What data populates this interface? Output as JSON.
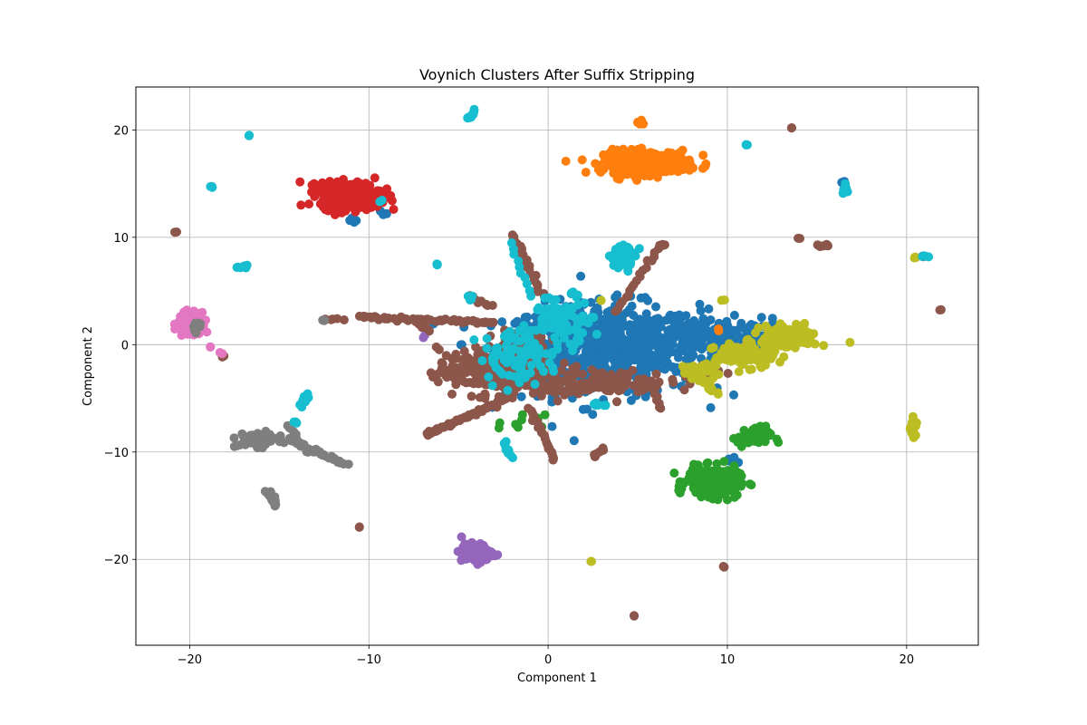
{
  "chart_data": {
    "type": "scatter",
    "title": "Voynich Clusters After Suffix Stripping",
    "xlabel": "Component 1",
    "ylabel": "Component 2",
    "xlim": [
      -23,
      24
    ],
    "ylim": [
      -28,
      24
    ],
    "xticks": [
      -20,
      -10,
      0,
      10,
      20
    ],
    "yticks": [
      -20,
      -10,
      0,
      10,
      20
    ],
    "grid": true,
    "legend": "none",
    "colors": [
      "#1f77b4",
      "#ff7f0e",
      "#2ca02c",
      "#d62728",
      "#9467bd",
      "#8c564b",
      "#e377c2",
      "#7f7f7f",
      "#bcbd22",
      "#17becf"
    ],
    "series": [
      {
        "color": "#1f77b4",
        "blobs": [
          {
            "cx": 3.0,
            "cy": -0.5,
            "rx": 4.5,
            "ry": 3.5,
            "n": 700
          },
          {
            "cx": 8.0,
            "cy": 0.8,
            "rx": 2.5,
            "ry": 1.8,
            "n": 120
          },
          {
            "cx": 11.0,
            "cy": 1.0,
            "rx": 1.8,
            "ry": 1.2,
            "n": 50
          },
          {
            "cx": 4.5,
            "cy": 16.3,
            "rx": 0.5,
            "ry": 0.3,
            "n": 12
          },
          {
            "cx": 16.5,
            "cy": 15.1,
            "rx": 0.15,
            "ry": 0.15,
            "n": 4
          },
          {
            "cx": 10.2,
            "cy": -10.8,
            "rx": 0.3,
            "ry": 0.3,
            "n": 6
          },
          {
            "cx": -10.8,
            "cy": 11.5,
            "rx": 0.3,
            "ry": 0.3,
            "n": 4
          },
          {
            "cx": -9.2,
            "cy": 12.4,
            "rx": 0.3,
            "ry": 0.3,
            "n": 4
          }
        ]
      },
      {
        "color": "#ff7f0e",
        "blobs": [
          {
            "cx": 5.5,
            "cy": 17.0,
            "rx": 2.0,
            "ry": 0.9,
            "n": 320
          },
          {
            "cx": 5.1,
            "cy": 20.6,
            "rx": 0.15,
            "ry": 0.2,
            "n": 5
          },
          {
            "cx": 9.5,
            "cy": 1.4,
            "rx": 0.2,
            "ry": 0.2,
            "n": 2
          }
        ]
      },
      {
        "color": "#2ca02c",
        "blobs": [
          {
            "cx": 9.2,
            "cy": -12.8,
            "rx": 1.2,
            "ry": 1.1,
            "n": 280
          },
          {
            "cx": 11.5,
            "cy": -8.6,
            "rx": 0.8,
            "ry": 0.8,
            "n": 50
          },
          {
            "cx": -1.5,
            "cy": -7.5,
            "rx": 1.1,
            "ry": 0.8,
            "n": 10
          }
        ]
      },
      {
        "color": "#d62728",
        "blobs": [
          {
            "cx": -11.0,
            "cy": 13.9,
            "rx": 1.4,
            "ry": 1.0,
            "n": 450
          }
        ]
      },
      {
        "color": "#9467bd",
        "blobs": [
          {
            "cx": -4.0,
            "cy": -19.4,
            "rx": 0.7,
            "ry": 0.7,
            "n": 150
          },
          {
            "cx": -6.9,
            "cy": 0.8,
            "rx": 0.2,
            "ry": 0.2,
            "n": 2
          }
        ]
      },
      {
        "color": "#8c564b",
        "lines": [
          {
            "from": [
              -10.5,
              2.6
            ],
            "to": [
              -3.0,
              2.0
            ],
            "n": 60
          },
          {
            "from": [
              -2.0,
              10.3
            ],
            "to": [
              -0.3,
              4.5
            ],
            "n": 25
          },
          {
            "from": [
              -6.8,
              -8.4
            ],
            "to": [
              -2.0,
              -4.8
            ],
            "n": 60
          },
          {
            "from": [
              -1.0,
              -6.0
            ],
            "to": [
              0.4,
              -10.8
            ],
            "n": 25
          },
          {
            "from": [
              -4.5,
              4.6
            ],
            "to": [
              -3.2,
              3.6
            ],
            "n": 10
          },
          {
            "from": [
              -12.3,
              2.3
            ],
            "to": [
              -11.5,
              2.4
            ],
            "n": 5
          },
          {
            "from": [
              3.8,
              3.0
            ],
            "to": [
              6.2,
              9.2
            ],
            "n": 20
          },
          {
            "from": [
              2.5,
              -10.5
            ],
            "to": [
              3.2,
              -9.7
            ],
            "n": 8
          },
          {
            "from": [
              15.0,
              9.2
            ],
            "to": [
              15.6,
              9.3
            ],
            "n": 6
          },
          {
            "from": [
              -7.5,
              2.2
            ],
            "to": [
              -6.6,
              1.2
            ],
            "n": 8
          },
          {
            "from": [
              5.8,
              -3.5
            ],
            "to": [
              6.2,
              -6.0
            ],
            "n": 10
          }
        ],
        "blobs": [
          {
            "cx": -3.0,
            "cy": -2.5,
            "rx": 2.6,
            "ry": 1.8,
            "n": 280
          },
          {
            "cx": 2.5,
            "cy": -3.5,
            "rx": 3.5,
            "ry": 1.0,
            "n": 130
          },
          {
            "cx": -1.5,
            "cy": 0.5,
            "rx": 1.2,
            "ry": 0.9,
            "n": 50
          },
          {
            "cx": 8.8,
            "cy": -2.5,
            "rx": 0.8,
            "ry": 0.5,
            "n": 15
          },
          {
            "cx": -20.8,
            "cy": 10.5,
            "rx": 0.05,
            "ry": 0.05,
            "n": 2
          },
          {
            "cx": 13.6,
            "cy": 20.2,
            "rx": 0.05,
            "ry": 0.05,
            "n": 2
          },
          {
            "cx": 14.0,
            "cy": 9.9,
            "rx": 0.05,
            "ry": 0.05,
            "n": 2
          },
          {
            "cx": 21.9,
            "cy": 3.2,
            "rx": 0.05,
            "ry": 0.05,
            "n": 2
          },
          {
            "cx": 20.9,
            "cy": 8.2,
            "rx": 0.05,
            "ry": 0.05,
            "n": 2
          },
          {
            "cx": -10.5,
            "cy": -17.0,
            "rx": 0.05,
            "ry": 0.05,
            "n": 2
          },
          {
            "cx": 9.8,
            "cy": -20.7,
            "rx": 0.05,
            "ry": 0.05,
            "n": 2
          },
          {
            "cx": 4.8,
            "cy": -25.3,
            "rx": 0.05,
            "ry": 0.05,
            "n": 2
          },
          {
            "cx": -18.1,
            "cy": -1.1,
            "rx": 0.1,
            "ry": 0.1,
            "n": 2
          },
          {
            "cx": 6.5,
            "cy": 9.3,
            "rx": 0.15,
            "ry": 0.1,
            "n": 3
          }
        ]
      },
      {
        "color": "#e377c2",
        "blobs": [
          {
            "cx": -20.0,
            "cy": 2.0,
            "rx": 0.5,
            "ry": 0.8,
            "n": 180
          },
          {
            "cx": -18.8,
            "cy": -0.2,
            "rx": 0.1,
            "ry": 0.1,
            "n": 2
          },
          {
            "cx": -18.3,
            "cy": -0.8,
            "rx": 0.1,
            "ry": 0.1,
            "n": 2
          }
        ]
      },
      {
        "color": "#7f7f7f",
        "lines": [
          {
            "from": [
              -14.5,
              -8.8
            ],
            "to": [
              -11.3,
              -11.2
            ],
            "n": 35
          },
          {
            "from": [
              -15.6,
              -13.7
            ],
            "to": [
              -15.2,
              -14.9
            ],
            "n": 15
          },
          {
            "from": [
              -14.5,
              -7.5
            ],
            "to": [
              -13.5,
              -10.0
            ],
            "n": 12
          }
        ],
        "blobs": [
          {
            "cx": -16.2,
            "cy": -8.9,
            "rx": 0.9,
            "ry": 0.5,
            "n": 80
          },
          {
            "cx": -19.6,
            "cy": 1.8,
            "rx": 0.3,
            "ry": 0.5,
            "n": 12
          },
          {
            "cx": -12.5,
            "cy": 2.3,
            "rx": 0.15,
            "ry": 0.1,
            "n": 3
          }
        ]
      },
      {
        "color": "#bcbd22",
        "lines": [
          {
            "from": [
              7.5,
              -2.0
            ],
            "to": [
              9.5,
              -4.7
            ],
            "n": 20
          }
        ],
        "blobs": [
          {
            "cx": 13.5,
            "cy": 0.7,
            "rx": 1.3,
            "ry": 0.9,
            "n": 130
          },
          {
            "cx": 11.0,
            "cy": -1.0,
            "rx": 1.4,
            "ry": 0.9,
            "n": 130
          },
          {
            "cx": 8.5,
            "cy": -2.5,
            "rx": 0.9,
            "ry": 0.6,
            "n": 30
          },
          {
            "cx": 20.4,
            "cy": -7.9,
            "rx": 0.15,
            "ry": 0.8,
            "n": 20
          },
          {
            "cx": 2.4,
            "cy": -20.2,
            "rx": 0.05,
            "ry": 0.05,
            "n": 2
          },
          {
            "cx": 20.5,
            "cy": 8.1,
            "rx": 0.1,
            "ry": 0.1,
            "n": 3
          },
          {
            "cx": 9.7,
            "cy": 4.2,
            "rx": 0.1,
            "ry": 0.1,
            "n": 2
          },
          {
            "cx": 3.0,
            "cy": 4.1,
            "rx": 0.1,
            "ry": 0.1,
            "n": 2
          }
        ]
      },
      {
        "color": "#17becf",
        "lines": [
          {
            "from": [
              -4.5,
              21.1
            ],
            "to": [
              -4.0,
              21.8
            ],
            "n": 10
          },
          {
            "from": [
              -13.8,
              -5.7
            ],
            "to": [
              -13.4,
              -4.6
            ],
            "n": 10
          },
          {
            "from": [
              -17.3,
              7.2
            ],
            "to": [
              -16.8,
              7.3
            ],
            "n": 8
          },
          {
            "from": [
              -1.0,
              4.5
            ],
            "to": [
              -2.0,
              9.5
            ],
            "n": 10
          },
          {
            "from": [
              16.6,
              15.0
            ],
            "to": [
              16.6,
              14.1
            ],
            "n": 6
          },
          {
            "from": [
              20.8,
              8.3
            ],
            "to": [
              21.2,
              8.3
            ],
            "n": 4
          },
          {
            "from": [
              -2.5,
              -9.0
            ],
            "to": [
              -2.0,
              -10.5
            ],
            "n": 8
          }
        ],
        "blobs": [
          {
            "cx": 0.8,
            "cy": 2.5,
            "rx": 1.4,
            "ry": 1.8,
            "n": 90
          },
          {
            "cx": -1.5,
            "cy": -1.0,
            "rx": 2.0,
            "ry": 2.0,
            "n": 90
          },
          {
            "cx": 4.2,
            "cy": 8.2,
            "rx": 0.6,
            "ry": 0.9,
            "n": 50
          },
          {
            "cx": -16.7,
            "cy": 19.5,
            "rx": 0.05,
            "ry": 0.05,
            "n": 3
          },
          {
            "cx": -18.8,
            "cy": 14.7,
            "rx": 0.05,
            "ry": 0.05,
            "n": 3
          },
          {
            "cx": -6.2,
            "cy": 7.5,
            "rx": 0.1,
            "ry": 0.1,
            "n": 3
          },
          {
            "cx": 11.1,
            "cy": 18.6,
            "rx": 0.1,
            "ry": 0.05,
            "n": 3
          },
          {
            "cx": -14.1,
            "cy": -7.2,
            "rx": 0.1,
            "ry": 0.1,
            "n": 3
          },
          {
            "cx": -9.3,
            "cy": 13.4,
            "rx": 0.1,
            "ry": 0.1,
            "n": 2
          },
          {
            "cx": 2.8,
            "cy": -5.5,
            "rx": 0.3,
            "ry": 0.3,
            "n": 6
          },
          {
            "cx": -4.3,
            "cy": 4.3,
            "rx": 0.2,
            "ry": 0.2,
            "n": 4
          }
        ]
      }
    ]
  }
}
